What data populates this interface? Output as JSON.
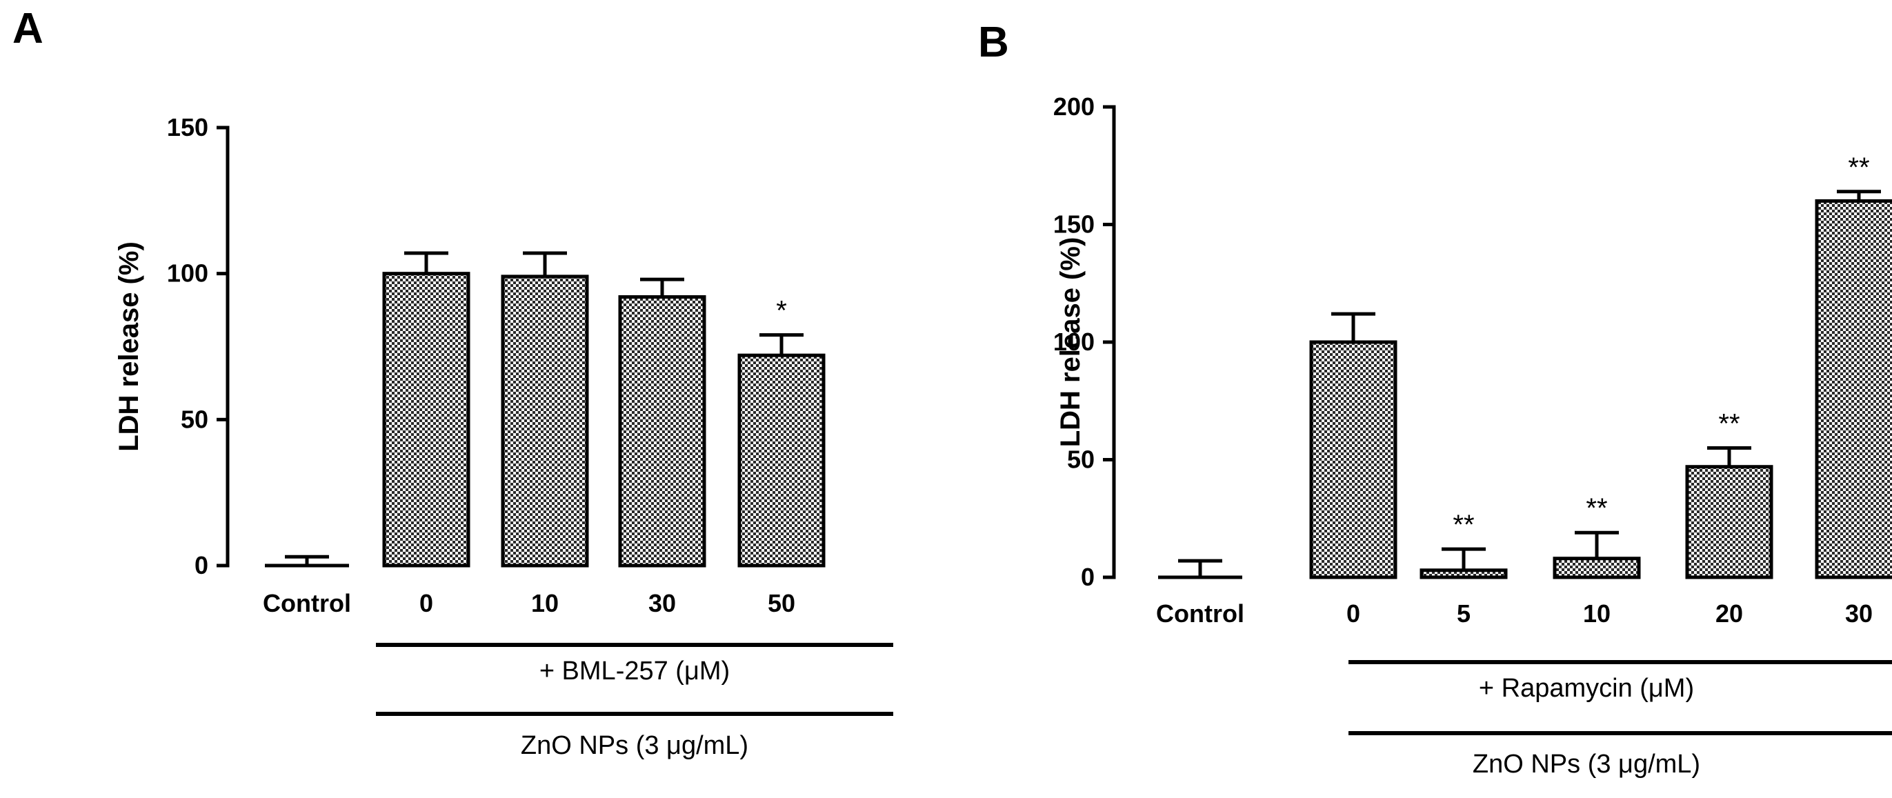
{
  "chart_data": [
    {
      "panel": "A",
      "type": "bar",
      "title": "",
      "ylabel": "LDH release (%)",
      "xlabel": "",
      "ylim": [
        0,
        150
      ],
      "yticks": [
        0,
        50,
        100,
        150
      ],
      "categories": [
        "Control",
        "0",
        "10",
        "30",
        "50"
      ],
      "values": [
        0,
        100,
        99,
        92,
        72
      ],
      "errors": [
        3,
        7,
        8,
        6,
        7
      ],
      "significance": [
        "",
        "",
        "",
        "",
        "*"
      ],
      "group_labels": [
        "+ BML-257 (μM)",
        "ZnO NPs (3 μg/mL)"
      ]
    },
    {
      "panel": "B",
      "type": "bar",
      "title": "",
      "ylabel": "LDH release (%)",
      "xlabel": "",
      "ylim": [
        0,
        200
      ],
      "yticks": [
        0,
        50,
        100,
        150,
        200
      ],
      "categories": [
        "Control",
        "0",
        "5",
        "10",
        "20",
        "30"
      ],
      "values": [
        0,
        100,
        3,
        8,
        47,
        160
      ],
      "errors": [
        7,
        12,
        9,
        11,
        8,
        4
      ],
      "significance": [
        "",
        "",
        "**",
        "**",
        "**",
        "**"
      ],
      "group_labels": [
        "+ Rapamycin (μM)",
        "ZnO NPs (3 μg/mL)"
      ]
    }
  ]
}
